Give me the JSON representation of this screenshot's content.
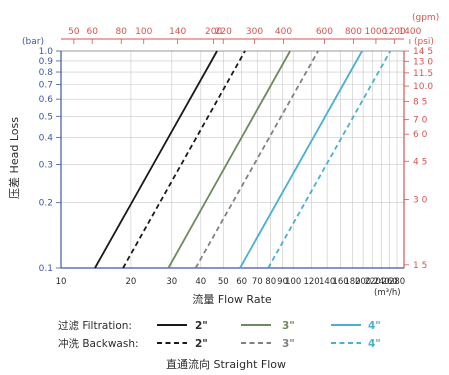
{
  "chart_data": {
    "type": "line",
    "title": "直通流向 Straight Flow",
    "xlabel": "流量 Flow Rate",
    "x_unit": "(m³/h)",
    "ylabel": "压差 Head Loss",
    "y_unit_left": "(bar)",
    "y_unit_right": "(psi)",
    "x2_unit": "(gpm)",
    "x_scale": "log",
    "y_scale": "log",
    "xlim": [
      10,
      300
    ],
    "ylim": [
      0.1,
      1.0
    ],
    "grid": true,
    "x_ticks": [
      "10",
      "20",
      "30",
      "40",
      "50",
      "60",
      "70",
      "80",
      "90",
      "100",
      "120",
      "140",
      "160",
      "180",
      "200",
      "220",
      "240",
      "260",
      "280"
    ],
    "x_tick_labels": [
      "10",
      "20",
      "30",
      "40",
      "50",
      "60",
      "70",
      "80",
      "90",
      "100",
      "120",
      "140",
      "160",
      "180",
      "200",
      "220",
      "240",
      "260",
      "280"
    ],
    "y_ticks": [
      "0.1",
      "0.2",
      "0.3",
      "0.4",
      "0.5",
      "0.6",
      "0.7",
      "0.8",
      "0.9",
      "1.0"
    ],
    "y_tick_labels": [
      "0.1",
      "0.2",
      "0.3",
      "0.4",
      "0.5",
      "0.6",
      "0.7",
      "0.8",
      "0.9",
      "1.0"
    ],
    "top_ticks": [
      "50",
      "60",
      "80",
      "100",
      "140",
      "200",
      "220",
      "300",
      "400",
      "600",
      "800",
      "1000",
      "1200",
      "1400"
    ],
    "top_tick_labels": [
      "50",
      "60",
      "80",
      "100",
      "140",
      "200",
      "220",
      "300",
      "400",
      "600",
      "800",
      "1000",
      "1200",
      "1400"
    ],
    "right_ticks": [
      "1.5",
      "3.0",
      "4.5",
      "6.0",
      "7.0",
      "8.5",
      "10.0",
      "11.5",
      "13.0",
      "14.5"
    ],
    "right_tick_labels": [
      "1 5",
      "3 0",
      "4 5",
      "6 0",
      "7 0",
      "8 5",
      "10.0",
      "11.5",
      "13 0",
      "14 5"
    ],
    "series": [
      {
        "name": "2\"",
        "group": "Filtration",
        "style": "solid",
        "color": "#1a1a1a",
        "x": [
          "14",
          "47"
        ],
        "y": [
          "0.1",
          "1.0"
        ]
      },
      {
        "name": "2\"",
        "group": "Backwash",
        "style": "dashed",
        "color": "#1a1a1a",
        "x": [
          "18.5",
          "62"
        ],
        "y": [
          "0.1",
          "1.0"
        ]
      },
      {
        "name": "3\"",
        "group": "Filtration",
        "style": "solid",
        "color": "#6e8a5e",
        "x": [
          "29",
          "97"
        ],
        "y": [
          "0.1",
          "1.0"
        ]
      },
      {
        "name": "3\"",
        "group": "Backwash",
        "style": "dashed",
        "color": "#808080",
        "x": [
          "38",
          "128"
        ],
        "y": [
          "0.1",
          "1.0"
        ]
      },
      {
        "name": "4\"",
        "group": "Filtration",
        "style": "solid",
        "color": "#4ab0cf",
        "x": [
          "59",
          "198"
        ],
        "y": [
          "0.1",
          "1.0"
        ]
      },
      {
        "name": "4\"",
        "group": "Backwash",
        "style": "dashed",
        "color": "#4ab0cf",
        "x": [
          "78",
          "262"
        ],
        "y": [
          "0.1",
          "1.0"
        ]
      }
    ]
  },
  "legend": {
    "row1_label": "过滤 Filtration:",
    "row2_label": "冲洗 Backwash:",
    "size_2": "2\"",
    "size_3": "3\"",
    "size_4": "4\""
  },
  "colors": {
    "blue_axis": "#3d5a9e",
    "red_axis": "#d9534f",
    "grid": "#c8c8c8"
  }
}
